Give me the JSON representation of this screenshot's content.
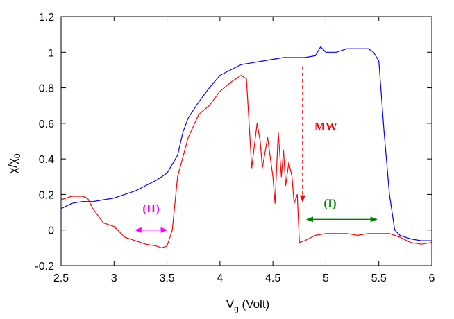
{
  "chart_data": {
    "type": "line",
    "title": "",
    "xlabel_main": "V",
    "xlabel_sub": "g",
    "xlabel_unit": " (Volt)",
    "ylabel_main": "χ/χ",
    "ylabel_sub": "0",
    "xlim": [
      2.5,
      6
    ],
    "ylim": [
      -0.2,
      1.2
    ],
    "xticks": [
      2.5,
      3,
      3.5,
      4,
      4.5,
      5,
      5.5,
      6
    ],
    "xtick_labels": [
      "2.5",
      "3",
      "3.5",
      "4",
      "4.5",
      "5",
      "5.5",
      "6"
    ],
    "yticks": [
      -0.2,
      0,
      0.2,
      0.4,
      0.6,
      0.8,
      1,
      1.2
    ],
    "ytick_labels": [
      "-0.2",
      "0",
      "0.2",
      "0.4",
      "0.6",
      "0.8",
      "1",
      "1.2"
    ],
    "grid": false,
    "series": [
      {
        "color": "#0000ff",
        "x": [
          2.5,
          2.6,
          2.7,
          2.8,
          2.9,
          3.0,
          3.1,
          3.2,
          3.3,
          3.4,
          3.5,
          3.6,
          3.65,
          3.7,
          3.8,
          3.9,
          4.0,
          4.1,
          4.2,
          4.3,
          4.4,
          4.5,
          4.6,
          4.7,
          4.8,
          4.9,
          4.95,
          5.0,
          5.1,
          5.2,
          5.3,
          5.4,
          5.45,
          5.5,
          5.55,
          5.6,
          5.65,
          5.7,
          5.8,
          5.9,
          6.0
        ],
        "y": [
          0.12,
          0.15,
          0.16,
          0.16,
          0.17,
          0.18,
          0.2,
          0.22,
          0.25,
          0.28,
          0.32,
          0.42,
          0.55,
          0.63,
          0.72,
          0.8,
          0.87,
          0.9,
          0.93,
          0.94,
          0.95,
          0.96,
          0.97,
          0.97,
          0.97,
          0.98,
          1.03,
          1.0,
          1.0,
          1.02,
          1.02,
          1.02,
          1.0,
          0.95,
          0.55,
          0.2,
          0.0,
          -0.03,
          -0.05,
          -0.06,
          -0.06
        ]
      },
      {
        "color": "#ff0000",
        "x": [
          2.5,
          2.6,
          2.7,
          2.75,
          2.8,
          2.9,
          3.0,
          3.1,
          3.2,
          3.3,
          3.4,
          3.45,
          3.5,
          3.55,
          3.6,
          3.7,
          3.8,
          3.9,
          4.0,
          4.1,
          4.2,
          4.25,
          4.3,
          4.35,
          4.38,
          4.4,
          4.45,
          4.5,
          4.52,
          4.55,
          4.58,
          4.6,
          4.62,
          4.65,
          4.68,
          4.7,
          4.73,
          4.75,
          4.8,
          4.9,
          5.0,
          5.1,
          5.2,
          5.3,
          5.4,
          5.5,
          5.6,
          5.7,
          5.8,
          5.9,
          6.0
        ],
        "y": [
          0.17,
          0.19,
          0.19,
          0.18,
          0.12,
          0.04,
          0.02,
          -0.04,
          -0.06,
          -0.08,
          -0.09,
          -0.1,
          -0.09,
          0.0,
          0.3,
          0.52,
          0.65,
          0.7,
          0.78,
          0.83,
          0.87,
          0.85,
          0.35,
          0.6,
          0.5,
          0.35,
          0.52,
          0.3,
          0.15,
          0.55,
          0.3,
          0.45,
          0.25,
          0.38,
          0.3,
          0.15,
          0.2,
          -0.07,
          -0.06,
          -0.03,
          -0.02,
          -0.02,
          -0.02,
          -0.03,
          -0.02,
          -0.02,
          -0.02,
          -0.04,
          -0.07,
          -0.08,
          -0.07
        ]
      }
    ],
    "annotations": [
      {
        "text": "(II)",
        "color": "#ff00ff",
        "x": 3.35,
        "y": 0.1,
        "arrow_from": [
          3.2,
          0.0
        ],
        "arrow_to": [
          3.5,
          0.0
        ],
        "arrow_style": "double"
      },
      {
        "text": "(I)",
        "color": "#008000",
        "x": 5.04,
        "y": 0.13,
        "arrow_from": [
          4.82,
          0.06
        ],
        "arrow_to": [
          5.48,
          0.06
        ],
        "arrow_style": "double"
      },
      {
        "text": "MW",
        "color": "#ff0000",
        "x": 5.0,
        "y": 0.56,
        "arrow_from": [
          4.78,
          0.92
        ],
        "arrow_to": [
          4.78,
          0.16
        ],
        "arrow_style": "dashed"
      }
    ]
  }
}
